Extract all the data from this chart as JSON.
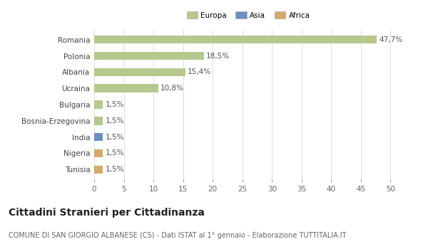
{
  "categories": [
    "Romania",
    "Polonia",
    "Albania",
    "Ucraina",
    "Bulgaria",
    "Bosnia-Erzegovina",
    "India",
    "Nigeria",
    "Tunisia"
  ],
  "values": [
    47.7,
    18.5,
    15.4,
    10.8,
    1.5,
    1.5,
    1.5,
    1.5,
    1.5
  ],
  "labels": [
    "47,7%",
    "18,5%",
    "15,4%",
    "10,8%",
    "1,5%",
    "1,5%",
    "1,5%",
    "1,5%",
    "1,5%"
  ],
  "colors": [
    "#b5c98e",
    "#b5c98e",
    "#b5c98e",
    "#b5c98e",
    "#b5c98e",
    "#b5c98e",
    "#6b8fbf",
    "#d4a96a",
    "#d4a96a"
  ],
  "legend_labels": [
    "Europa",
    "Asia",
    "Africa"
  ],
  "legend_colors": [
    "#b5c98e",
    "#6b8fbf",
    "#d4a96a"
  ],
  "xlim": [
    0,
    52
  ],
  "xticks": [
    0,
    5,
    10,
    15,
    20,
    25,
    30,
    35,
    40,
    45,
    50
  ],
  "title": "Cittadini Stranieri per Cittadinanza",
  "subtitle": "COMUNE DI SAN GIORGIO ALBANESE (CS) - Dati ISTAT al 1° gennaio - Elaborazione TUTTITALIA.IT",
  "bg_color": "#ffffff",
  "grid_color": "#dddddd",
  "bar_height": 0.5,
  "label_fontsize": 7.5,
  "title_fontsize": 10,
  "subtitle_fontsize": 7
}
